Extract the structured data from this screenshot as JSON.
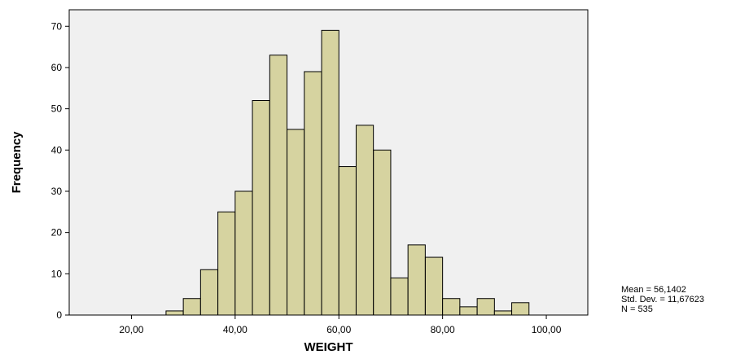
{
  "chart_data": {
    "type": "bar",
    "xlabel": "WEIGHT",
    "ylabel": "Frequency",
    "xlim": [
      8,
      108
    ],
    "ylim": [
      0,
      74
    ],
    "x_ticks": [
      "20,00",
      "40,00",
      "60,00",
      "80,00",
      "100,00"
    ],
    "x_tick_values": [
      20,
      40,
      60,
      80,
      100
    ],
    "y_ticks": [
      "0",
      "10",
      "20",
      "30",
      "40",
      "50",
      "60",
      "70"
    ],
    "y_tick_values": [
      0,
      10,
      20,
      30,
      40,
      50,
      60,
      70
    ],
    "bin_width": 3.33,
    "bins": [
      {
        "start": 26.67,
        "value": 1
      },
      {
        "start": 30.0,
        "value": 4
      },
      {
        "start": 33.33,
        "value": 11
      },
      {
        "start": 36.67,
        "value": 25
      },
      {
        "start": 40.0,
        "value": 30
      },
      {
        "start": 43.33,
        "value": 52
      },
      {
        "start": 46.67,
        "value": 63
      },
      {
        "start": 50.0,
        "value": 45
      },
      {
        "start": 53.33,
        "value": 59
      },
      {
        "start": 56.67,
        "value": 69
      },
      {
        "start": 60.0,
        "value": 36
      },
      {
        "start": 63.33,
        "value": 46
      },
      {
        "start": 66.67,
        "value": 40
      },
      {
        "start": 70.0,
        "value": 9
      },
      {
        "start": 73.33,
        "value": 17
      },
      {
        "start": 76.67,
        "value": 14
      },
      {
        "start": 80.0,
        "value": 4
      },
      {
        "start": 83.33,
        "value": 2
      },
      {
        "start": 86.67,
        "value": 4
      },
      {
        "start": 90.0,
        "value": 1
      },
      {
        "start": 93.33,
        "value": 3
      }
    ],
    "grid": false,
    "colors": {
      "bar_fill": "#d6d3a0",
      "plot_background": "#f0f0f0"
    },
    "stats": {
      "mean": "Mean = 56,1402",
      "std_dev": "Std. Dev. = 11,67623",
      "n": "N = 535"
    }
  }
}
